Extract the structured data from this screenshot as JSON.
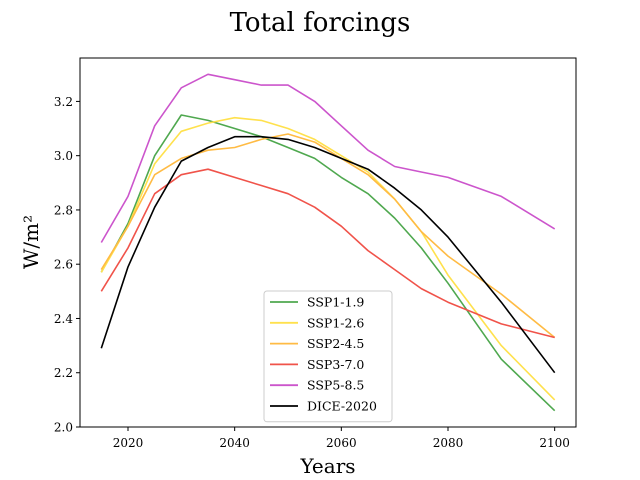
{
  "chart_data": {
    "type": "line",
    "title": "Total forcings",
    "xlabel": "Years",
    "ylabel": "W/m²",
    "xlim": [
      2011,
      2104
    ],
    "ylim": [
      2.0,
      3.36
    ],
    "x_ticks": [
      2020,
      2040,
      2060,
      2080,
      2100
    ],
    "y_ticks": [
      2.0,
      2.2,
      2.4,
      2.6,
      2.8,
      3.0,
      3.2
    ],
    "grid": false,
    "legend_position": "bottom-center",
    "x": [
      2015,
      2020,
      2025,
      2030,
      2035,
      2040,
      2045,
      2050,
      2055,
      2060,
      2065,
      2070,
      2075,
      2080,
      2090,
      2100
    ],
    "series": [
      {
        "name": "SSP1-1.9",
        "color": "#4fa84f",
        "values": [
          2.57,
          2.75,
          3.0,
          3.15,
          3.13,
          3.1,
          3.07,
          3.03,
          2.99,
          2.92,
          2.86,
          2.77,
          2.66,
          2.53,
          2.25,
          2.06
        ]
      },
      {
        "name": "SSP1-2.6",
        "color": "#ffe14d",
        "values": [
          2.57,
          2.74,
          2.97,
          3.09,
          3.12,
          3.14,
          3.13,
          3.1,
          3.06,
          3.0,
          2.94,
          2.84,
          2.72,
          2.56,
          2.3,
          2.1
        ]
      },
      {
        "name": "SSP2-4.5",
        "color": "#ffbb44",
        "values": [
          2.58,
          2.74,
          2.93,
          2.99,
          3.02,
          3.03,
          3.06,
          3.08,
          3.05,
          2.99,
          2.93,
          2.84,
          2.72,
          2.63,
          2.49,
          2.33
        ]
      },
      {
        "name": "SSP3-7.0",
        "color": "#f0534a",
        "values": [
          2.5,
          2.66,
          2.86,
          2.93,
          2.95,
          2.92,
          2.89,
          2.86,
          2.81,
          2.74,
          2.65,
          2.58,
          2.51,
          2.46,
          2.38,
          2.33
        ]
      },
      {
        "name": "SSP5-8.5",
        "color": "#cc55cc",
        "values": [
          2.68,
          2.85,
          3.11,
          3.25,
          3.3,
          3.28,
          3.26,
          3.26,
          3.2,
          3.11,
          3.02,
          2.96,
          2.94,
          2.92,
          2.85,
          2.73
        ]
      },
      {
        "name": "DICE-2020",
        "color": "#000000",
        "values": [
          2.29,
          2.59,
          2.81,
          2.98,
          3.03,
          3.07,
          3.07,
          3.06,
          3.03,
          2.99,
          2.95,
          2.88,
          2.8,
          2.7,
          2.46,
          2.2
        ]
      }
    ]
  }
}
